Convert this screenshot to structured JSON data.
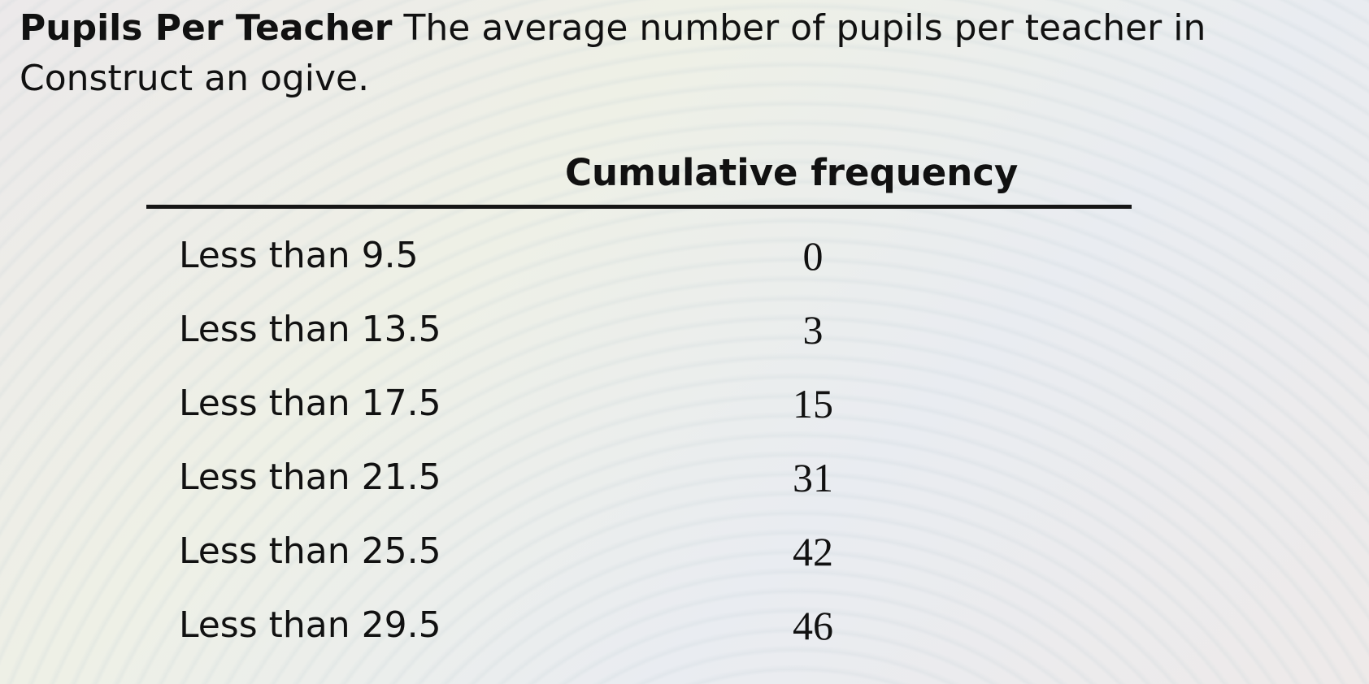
{
  "problem": {
    "title": "Pupils Per Teacher",
    "text_line1": "The average number of pupils per teacher in",
    "text_line2": "Construct an ogive."
  },
  "table": {
    "column_header": "Cumulative frequency",
    "rows": [
      {
        "label": "Less than 9.5",
        "value": "0"
      },
      {
        "label": "Less than 13.5",
        "value": "3"
      },
      {
        "label": "Less than 17.5",
        "value": "15"
      },
      {
        "label": "Less than 21.5",
        "value": "31"
      },
      {
        "label": "Less than 25.5",
        "value": "42"
      },
      {
        "label": "Less than 29.5",
        "value": "46"
      }
    ]
  }
}
